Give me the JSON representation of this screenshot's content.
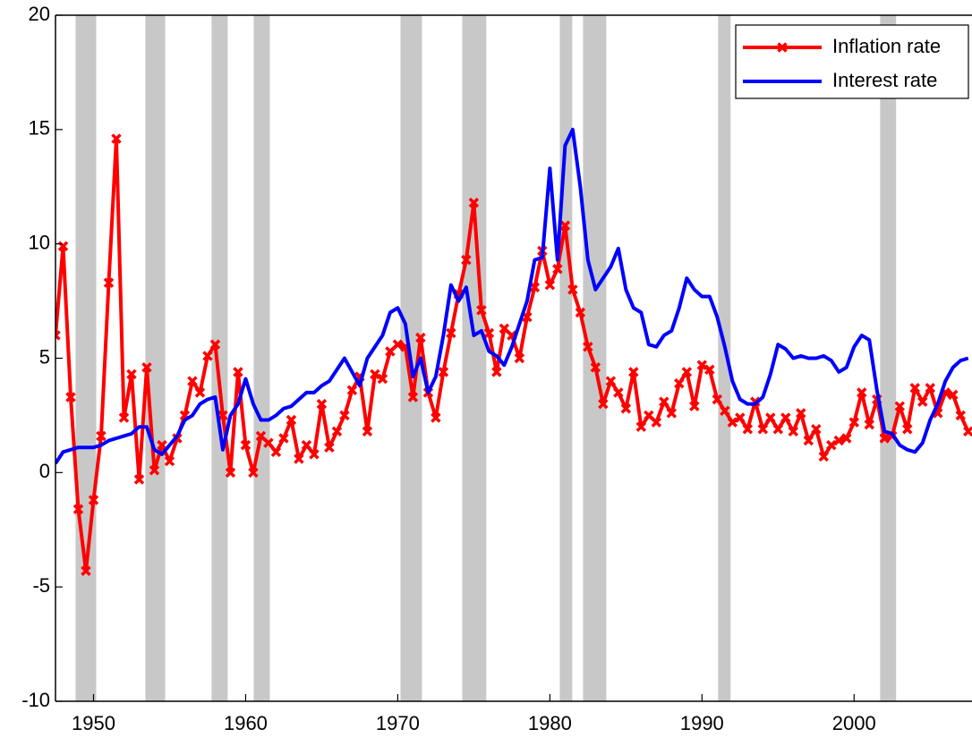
{
  "chart_data": {
    "type": "line",
    "xlim": [
      1947.5,
      2007.75
    ],
    "xticks": [
      1950,
      1960,
      1970,
      1980,
      1990,
      2000
    ],
    "ylim": [
      -10,
      20
    ],
    "yticks": [
      -10,
      -5,
      0,
      5,
      10,
      15,
      20
    ],
    "legend": "top-right",
    "shade_color": "#c8c8c8",
    "shaded_periods": [
      [
        1948.82,
        1950.18
      ],
      [
        1953.41,
        1954.71
      ],
      [
        1957.76,
        1958.82
      ],
      [
        1960.53,
        1961.59
      ],
      [
        1970.18,
        1971.59
      ],
      [
        1974.24,
        1975.82
      ],
      [
        1980.65,
        1981.47
      ],
      [
        1982.18,
        1983.71
      ],
      [
        1991.06,
        1991.88
      ],
      [
        2001.71,
        2002.76
      ]
    ],
    "x": [
      1947.5,
      1948,
      1948.5,
      1949,
      1949.5,
      1950,
      1950.5,
      1951,
      1951.5,
      1952,
      1952.5,
      1953,
      1953.5,
      1954,
      1954.5,
      1955,
      1955.5,
      1956,
      1956.5,
      1957,
      1957.5,
      1958,
      1958.5,
      1959,
      1959.5,
      1960,
      1960.5,
      1961,
      1961.5,
      1962,
      1962.5,
      1963,
      1963.5,
      1964,
      1964.5,
      1965,
      1965.5,
      1966,
      1966.5,
      1967,
      1967.5,
      1968,
      1968.5,
      1969,
      1969.5,
      1970,
      1970.5,
      1971,
      1971.5,
      1972,
      1972.5,
      1973,
      1973.5,
      1974,
      1974.5,
      1975,
      1975.5,
      1976,
      1976.5,
      1977,
      1977.5,
      1978,
      1978.5,
      1979,
      1979.5,
      1980,
      1980.5,
      1981,
      1981.5,
      1982,
      1982.5,
      1983,
      1983.5,
      1984,
      1984.5,
      1985,
      1985.5,
      1986,
      1986.5,
      1987,
      1987.5,
      1988,
      1988.5,
      1989,
      1989.5,
      1990,
      1990.5,
      1991,
      1991.5,
      1992,
      1992.5,
      1993,
      1993.5,
      1994,
      1994.5,
      1995,
      1995.5,
      1996,
      1996.5,
      1997,
      1997.5,
      1998,
      1998.5,
      1999,
      1999.5,
      2000,
      2000.5,
      2001,
      2001.5,
      2002,
      2002.5,
      2003,
      2003.5,
      2004,
      2004.5,
      2005,
      2005.5,
      2006,
      2006.5,
      2007,
      2007.5
    ],
    "series": [
      {
        "name": "Inflation rate",
        "color": "#ff0000",
        "marker": "x",
        "values": [
          6,
          9.9,
          3.3,
          -1.6,
          -4.3,
          -1.2,
          1.6,
          8.3,
          14.6,
          2.4,
          4.3,
          -0.3,
          4.6,
          0.1,
          1.2,
          0.5,
          1.5,
          2.5,
          4.0,
          3.5,
          5.1,
          5.6,
          2.5,
          0.0,
          4.4,
          1.2,
          0.0,
          1.6,
          1.3,
          0.9,
          1.5,
          2.3,
          0.6,
          1.2,
          0.8,
          3.0,
          1.1,
          1.8,
          2.5,
          3.6,
          4.2,
          1.8,
          4.3,
          4.1,
          5.3,
          5.6,
          5.5,
          3.3,
          5.9,
          3.5,
          2.4,
          4.4,
          6.1,
          7.8,
          9.3,
          11.8,
          7.1,
          6.1,
          4.4,
          6.3,
          6.0,
          5.0,
          6.8,
          8.1,
          9.7,
          8.2,
          8.9,
          10.8,
          8.0,
          7.0,
          5.5,
          4.6,
          3.0,
          4.0,
          3.5,
          2.8,
          4.4,
          2.0,
          2.5,
          2.2,
          3.1,
          2.6,
          3.9,
          4.4,
          2.9,
          4.7,
          4.5,
          3.2,
          2.7,
          2.2,
          2.4,
          1.9,
          3.1,
          1.9,
          2.4,
          1.9,
          2.4,
          1.8,
          2.6,
          1.4,
          1.9,
          0.7,
          1.2,
          1.4,
          1.5,
          2.2,
          3.5,
          2.1,
          3.2,
          1.5,
          1.6,
          2.9,
          1.9,
          3.7,
          3.1,
          3.7,
          2.6,
          3.5,
          3.4,
          2.5,
          1.8
        ]
      },
      {
        "name": "Interest rate",
        "color": "#0000ff",
        "values": [
          0.4,
          0.9,
          1.0,
          1.1,
          1.1,
          1.1,
          1.2,
          1.4,
          1.5,
          1.6,
          1.7,
          2.0,
          2.0,
          1.0,
          0.8,
          1.2,
          1.6,
          2.3,
          2.5,
          3.0,
          3.2,
          3.3,
          1.0,
          2.5,
          3.0,
          4.1,
          3.0,
          2.3,
          2.3,
          2.5,
          2.8,
          2.9,
          3.2,
          3.5,
          3.5,
          3.8,
          4.0,
          4.5,
          5.0,
          4.4,
          3.8,
          5.0,
          5.5,
          6.0,
          7.0,
          7.2,
          6.5,
          4.2,
          5.0,
          3.5,
          4.2,
          6.0,
          8.2,
          7.5,
          8.1,
          6.0,
          6.2,
          5.3,
          5.1,
          4.7,
          5.5,
          6.5,
          7.5,
          9.3,
          9.4,
          13.3,
          9.3,
          14.3,
          15.0,
          12.5,
          9.3,
          8.0,
          8.5,
          9.0,
          9.8,
          8.0,
          7.2,
          7.0,
          5.6,
          5.5,
          6.0,
          6.2,
          7.2,
          8.5,
          8.0,
          7.7,
          7.7,
          6.8,
          5.5,
          4.0,
          3.2,
          3.0,
          3.0,
          3.3,
          4.3,
          5.6,
          5.4,
          5.0,
          5.1,
          5.0,
          5.0,
          5.1,
          4.9,
          4.4,
          4.6,
          5.5,
          6.0,
          5.8,
          3.6,
          1.8,
          1.7,
          1.2,
          1.0,
          0.9,
          1.3,
          2.3,
          3.0,
          4.0,
          4.6,
          4.9,
          5.0
        ]
      }
    ]
  }
}
